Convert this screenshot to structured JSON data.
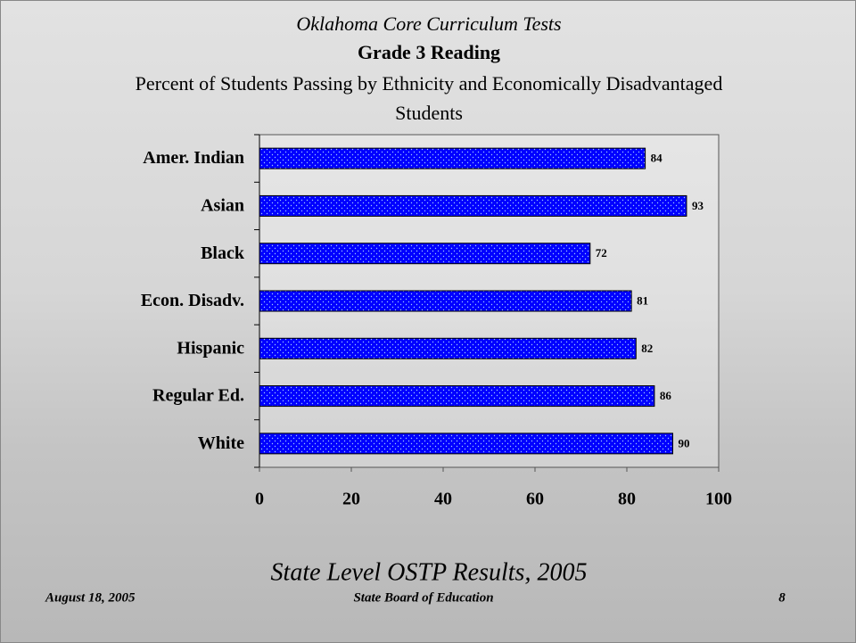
{
  "chart_data": {
    "type": "barh",
    "supertitle": "Oklahoma Core Curriculum Tests",
    "title": "Grade 3 Reading",
    "subtitle": "Percent of Students Passing by Ethnicity and Economically Disadvantaged Students",
    "categories": [
      "Amer. Indian",
      "Asian",
      "Black",
      "Econ. Disadv.",
      "Hispanic",
      "Regular Ed.",
      "White"
    ],
    "values": [
      84,
      93,
      72,
      81,
      82,
      86,
      90
    ],
    "color": "#0000ff",
    "xlim": [
      0,
      100
    ],
    "xticks": [
      0,
      20,
      40,
      60,
      80,
      100
    ]
  },
  "footer": {
    "caption": "State Level OSTP Results, 2005",
    "date": "August 18, 2005",
    "organization": "State Board of Education",
    "page": 8
  }
}
